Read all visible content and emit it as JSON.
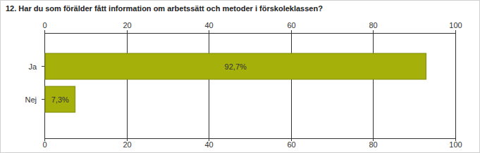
{
  "chart_data": {
    "type": "bar",
    "title": "12. Har du som förälder fått information om arbetssätt och metoder i förskoleklassen?",
    "categories": [
      "Ja",
      "Nej"
    ],
    "values": [
      92.7,
      7.3
    ],
    "value_labels": [
      "92,7%",
      "7,3%"
    ],
    "color": "#a5b00b",
    "orientation": "horizontal",
    "xlim": [
      0,
      100
    ],
    "xticks": [
      0,
      20,
      40,
      60,
      80,
      100
    ],
    "grid": true,
    "data_labels": true
  }
}
